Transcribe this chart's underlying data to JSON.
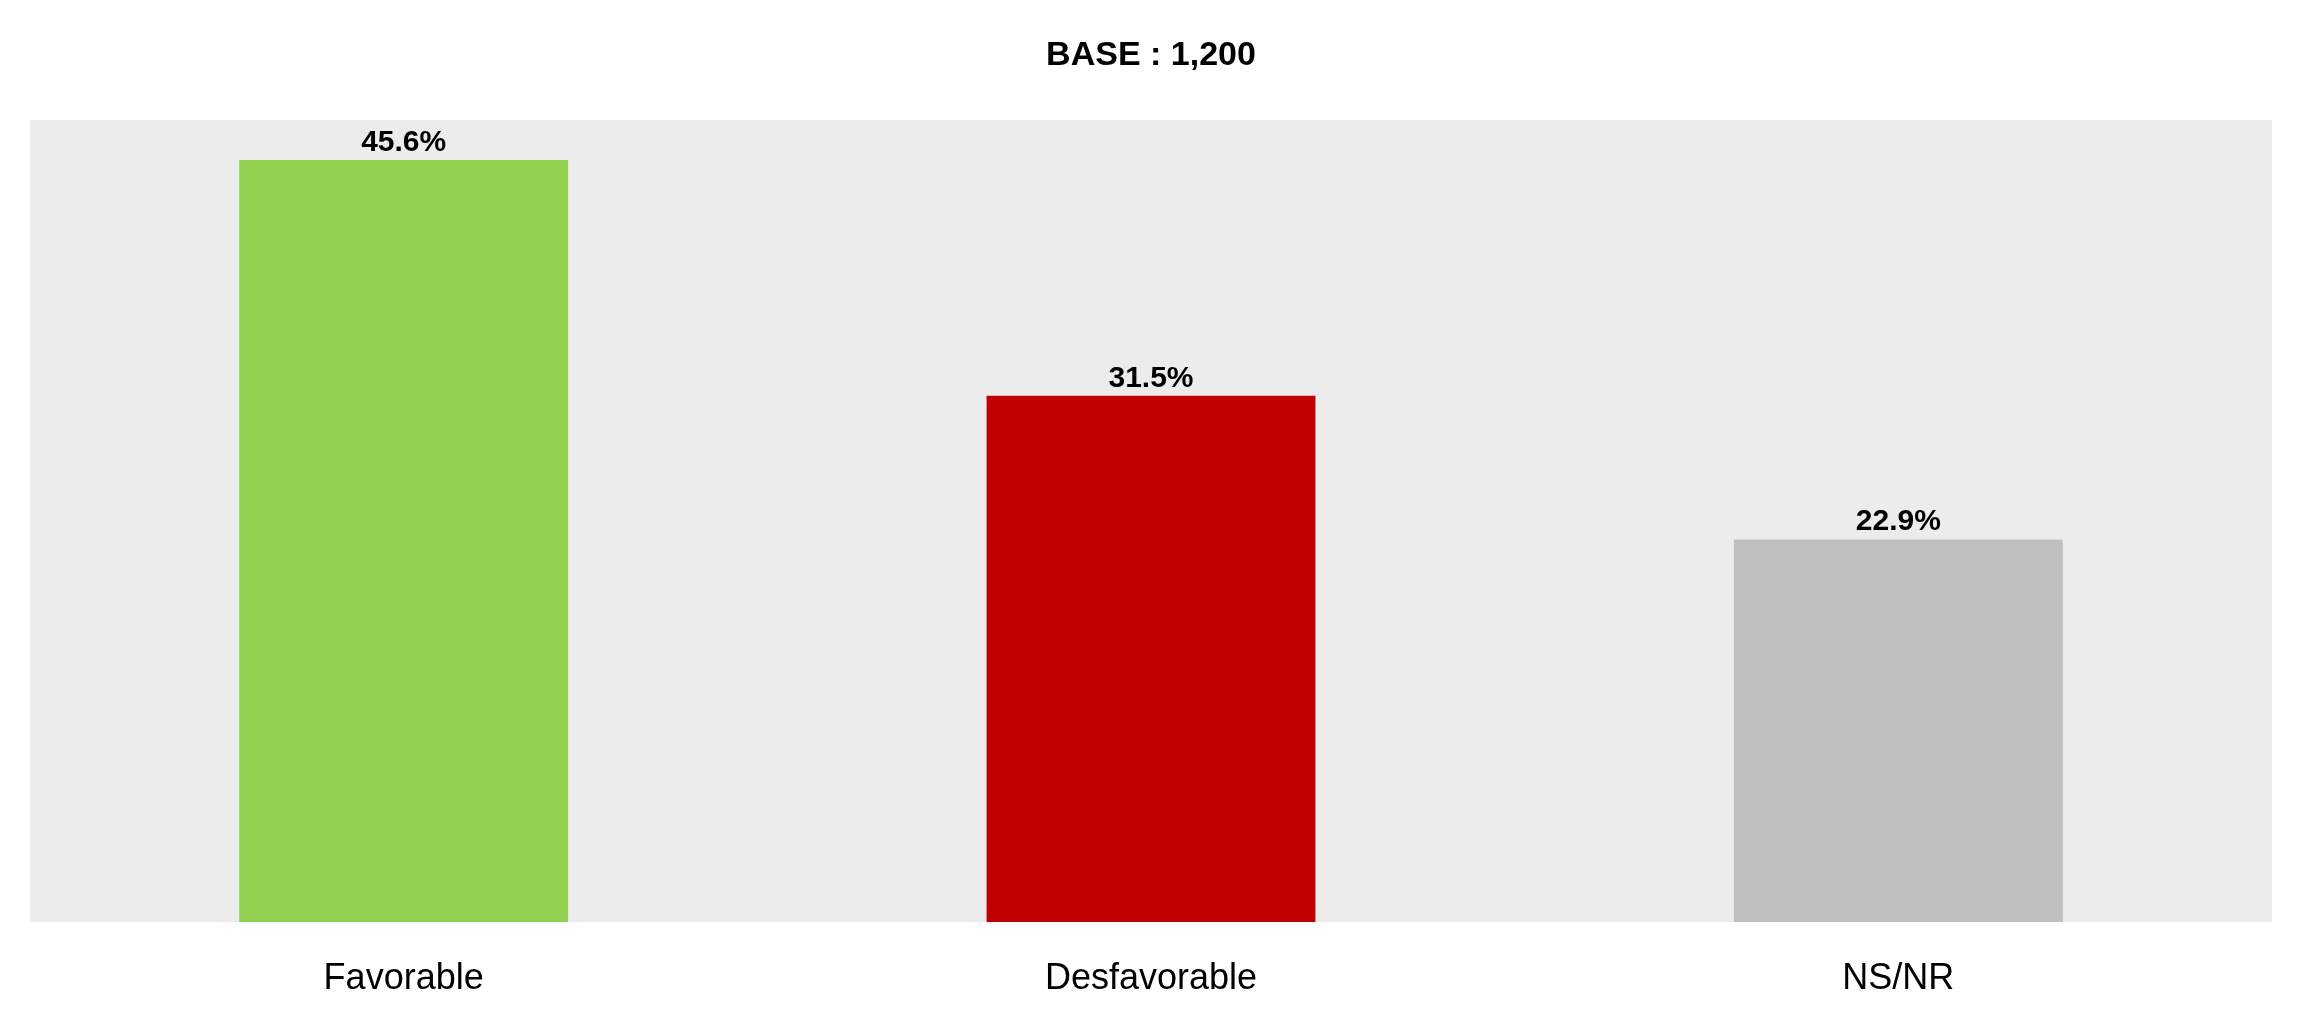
{
  "chart_data": {
    "type": "bar",
    "title": "BASE : 1,200",
    "categories": [
      "Favorable",
      "Desfavorable",
      "NS/NR"
    ],
    "values": [
      45.6,
      31.5,
      22.9
    ],
    "colors": [
      "#92d050",
      "#c00000",
      "#bfbfbf"
    ],
    "value_labels": [
      "45.6%",
      "31.5%",
      "22.9%"
    ],
    "grid": false
  }
}
